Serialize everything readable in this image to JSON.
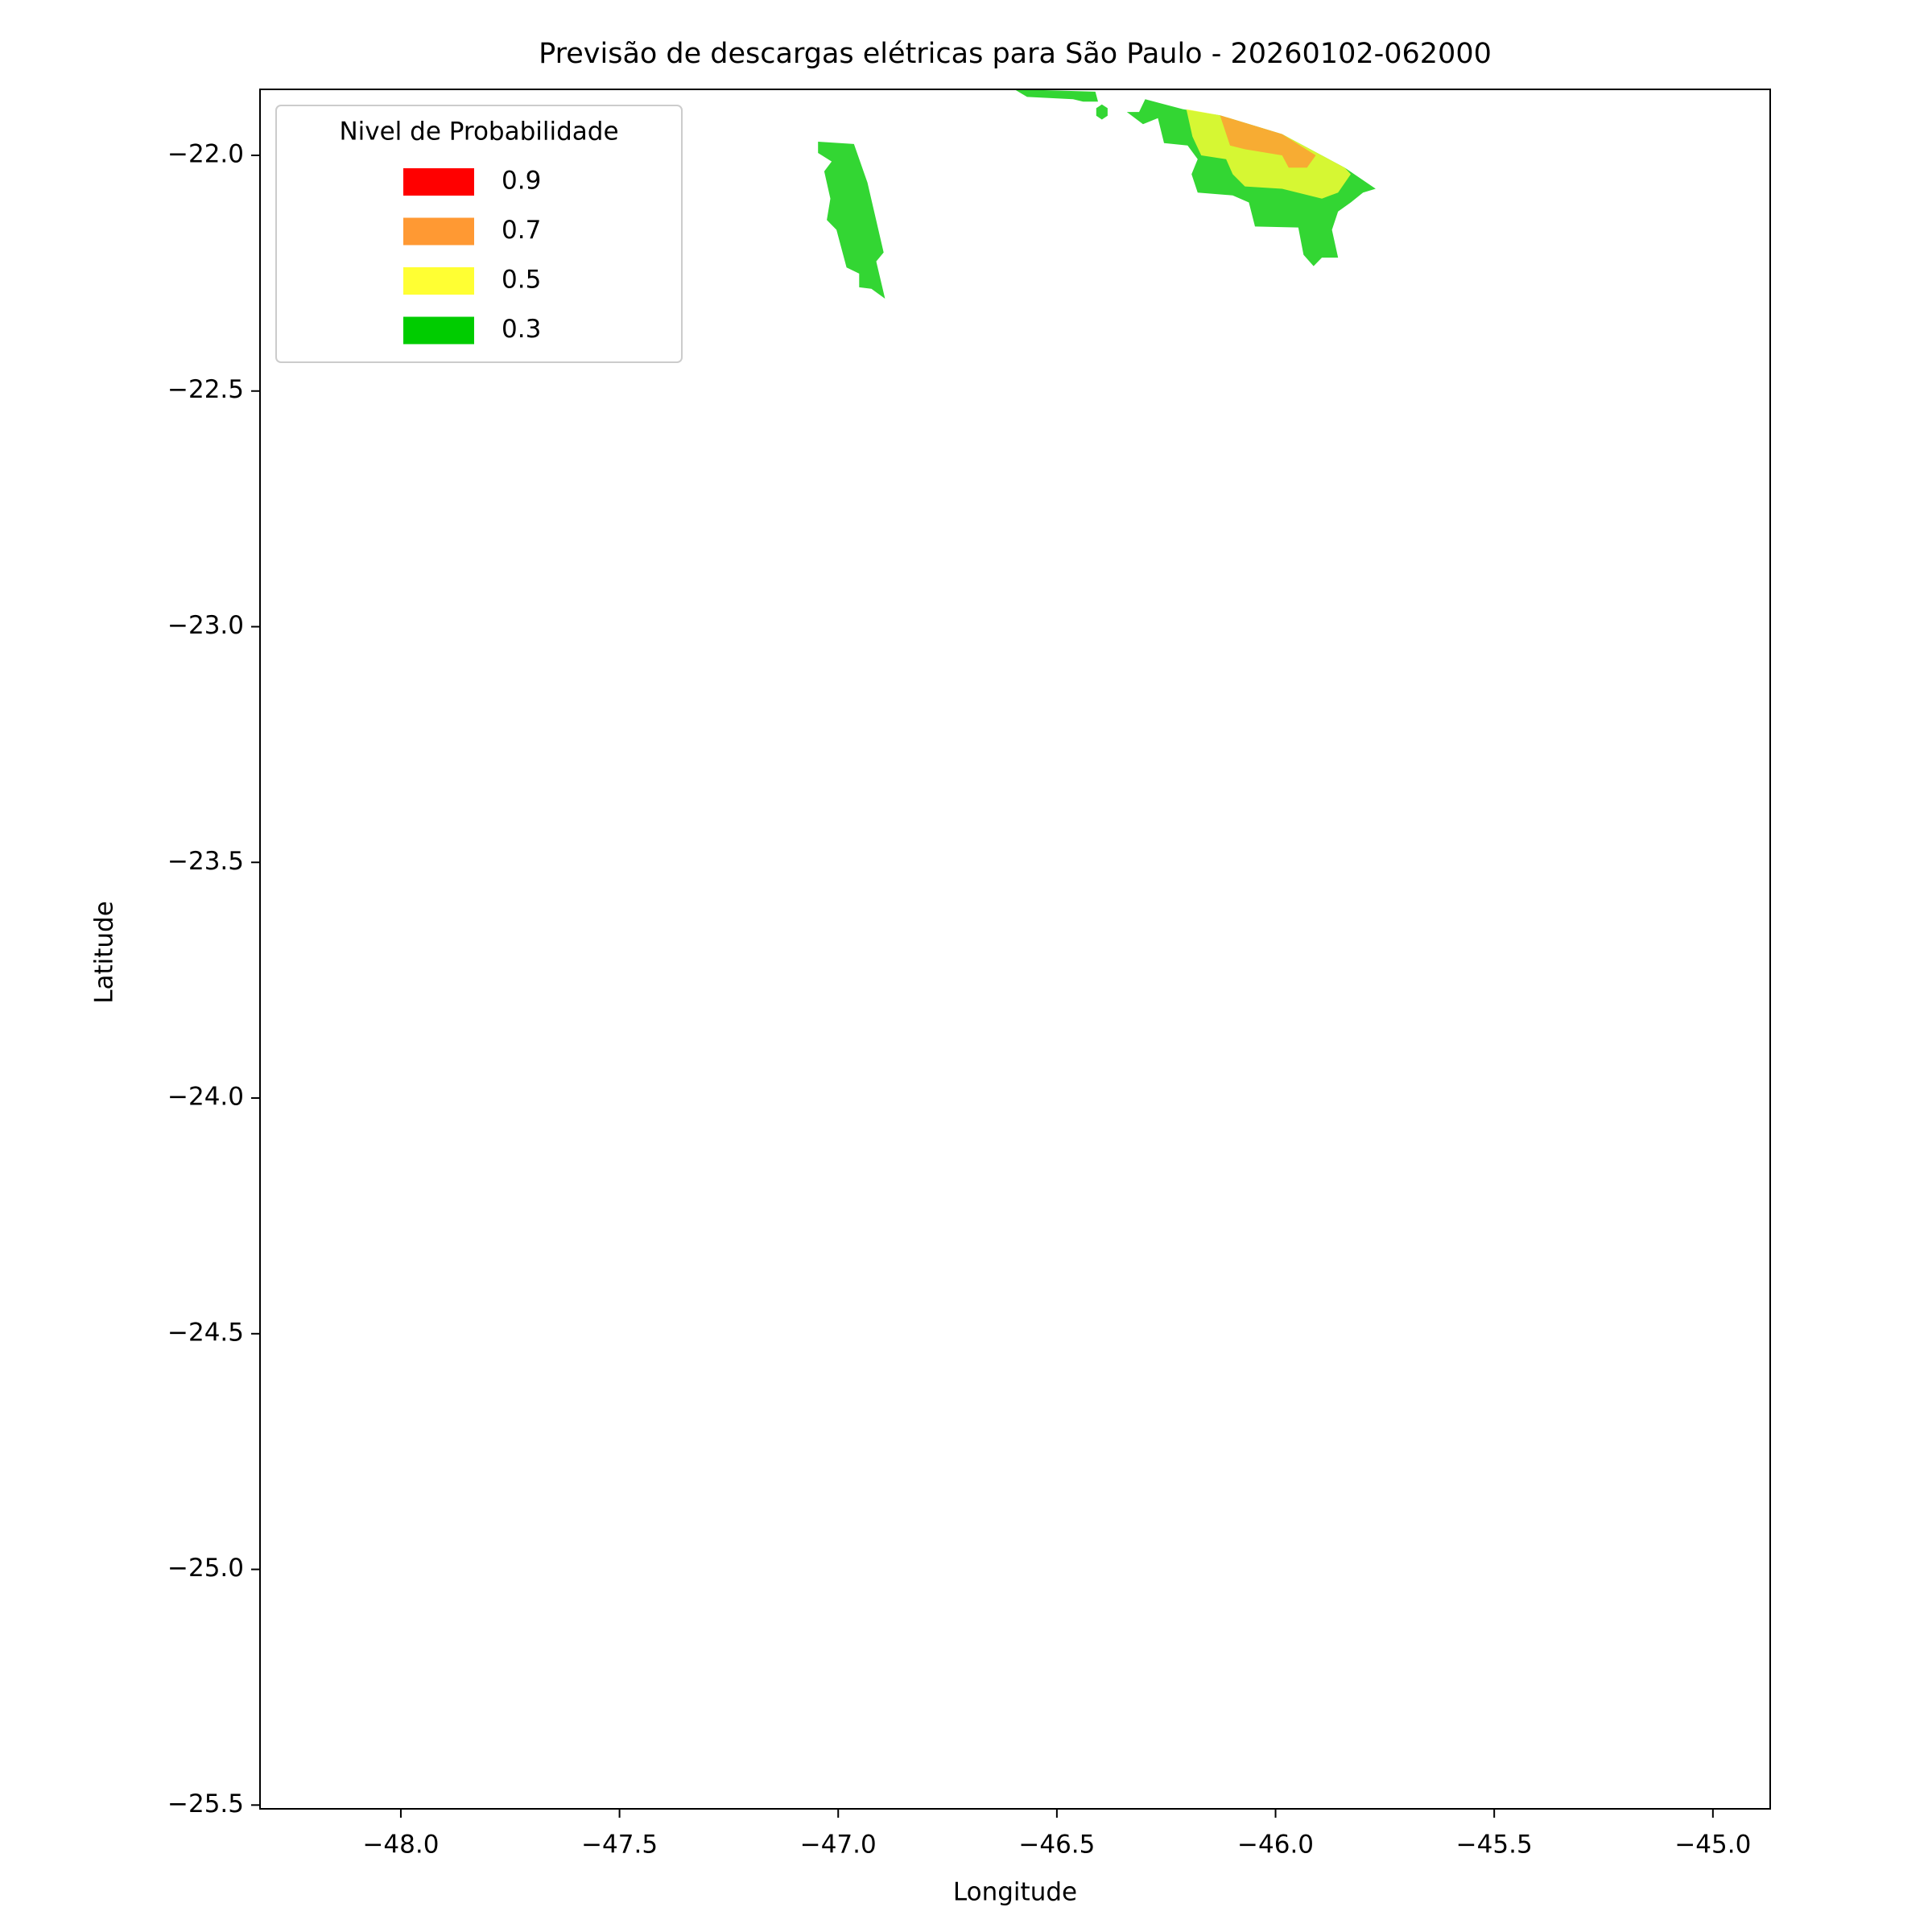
{
  "chart_data": {
    "type": "contour-map",
    "title": "Previsão de descargas elétricas para São Paulo - 20260102-062000",
    "x_label": "Longitude",
    "y_label": "Latitude",
    "xlim": [
      -48.322,
      -44.869
    ],
    "ylim": [
      -25.508,
      -21.86
    ],
    "xticks": [
      {
        "value": -48,
        "label": "−48.0"
      },
      {
        "value": -47.5,
        "label": "−47.5"
      },
      {
        "value": -47,
        "label": "−47.0"
      },
      {
        "value": -46.5,
        "label": "−46.5"
      },
      {
        "value": -46,
        "label": "−46.0"
      },
      {
        "value": -45.5,
        "label": "−45.5"
      },
      {
        "value": -45,
        "label": "−45.0"
      }
    ],
    "yticks": [
      {
        "value": -22,
        "label": "−22.0"
      },
      {
        "value": -22.5,
        "label": "−22.5"
      },
      {
        "value": -23,
        "label": "−23.0"
      },
      {
        "value": -23.5,
        "label": "−23.5"
      },
      {
        "value": -24,
        "label": "−24.0"
      },
      {
        "value": -24.5,
        "label": "−24.5"
      },
      {
        "value": -25,
        "label": "−25.0"
      },
      {
        "value": -25.5,
        "label": "−25.5"
      }
    ],
    "legend_title": "Nivel de Probabilidade",
    "legend": "upper left",
    "levels": [
      {
        "name": 0.9,
        "color": "#ff0000"
      },
      {
        "name": 0.7,
        "color": "#ff9933"
      },
      {
        "name": 0.5,
        "color": "#ffff33"
      },
      {
        "name": 0.3,
        "color": "#00cc00"
      }
    ],
    "regions": [
      {
        "level": 0.3,
        "lon": [
          -47.046,
          -46.964,
          -46.933,
          -46.896,
          -46.913,
          -46.893,
          -46.924,
          -46.952,
          -46.952,
          -46.981,
          -47.004,
          -47.026,
          -47.018,
          -47.032,
          -47.015,
          -47.046
        ],
        "lat": [
          -21.971,
          -21.976,
          -22.058,
          -22.206,
          -22.225,
          -22.304,
          -22.283,
          -22.28,
          -22.251,
          -22.238,
          -22.158,
          -22.137,
          -22.092,
          -22.034,
          -22.013,
          -21.995
        ]
      },
      {
        "level": 0.3,
        "lon": [
          -46.597,
          -46.412,
          -46.406,
          -46.44,
          -46.463,
          -46.568
        ],
        "lat": [
          -21.86,
          -21.865,
          -21.886,
          -21.886,
          -21.881,
          -21.876
        ]
      },
      {
        "level": 0.3,
        "lon": [
          -46.397,
          -46.384,
          -46.384,
          -46.397,
          -46.41,
          -46.41
        ],
        "lat": [
          -21.892,
          -21.9,
          -21.916,
          -21.924,
          -21.916,
          -21.9
        ]
      },
      {
        "level": 0.3,
        "lon": [
          -46.298,
          -46.212,
          -46.127,
          -45.985,
          -45.842,
          -45.771,
          -45.8,
          -45.828,
          -45.857,
          -45.871,
          -45.857,
          -45.894,
          -45.913,
          -45.936,
          -45.948,
          -46.047,
          -46.061,
          -46.098,
          -46.178,
          -46.192,
          -46.178,
          -46.201,
          -46.255,
          -46.269,
          -46.303,
          -46.34,
          -46.312
        ],
        "lat": [
          -21.881,
          -21.902,
          -21.915,
          -21.955,
          -22.026,
          -22.071,
          -22.079,
          -22.1,
          -22.119,
          -22.158,
          -22.217,
          -22.217,
          -22.235,
          -22.211,
          -22.153,
          -22.151,
          -22.1,
          -22.085,
          -22.079,
          -22.04,
          -22.008,
          -21.979,
          -21.974,
          -21.921,
          -21.934,
          -21.908,
          -21.908
        ]
      },
      {
        "level": 0.5,
        "lon": [
          -46.204,
          -46.127,
          -45.985,
          -45.842,
          -45.828,
          -45.857,
          -45.894,
          -45.985,
          -46.07,
          -46.098,
          -46.113,
          -46.17,
          -46.19
        ],
        "lat": [
          -21.902,
          -21.915,
          -21.955,
          -22.026,
          -22.04,
          -22.079,
          -22.092,
          -22.071,
          -22.066,
          -22.04,
          -22.008,
          -22.0,
          -21.96
        ]
      },
      {
        "level": 0.7,
        "lon": [
          -46.127,
          -45.985,
          -45.908,
          -45.928,
          -45.97,
          -45.985,
          -46.07,
          -46.104
        ],
        "lat": [
          -21.915,
          -21.955,
          -22.0,
          -22.026,
          -22.026,
          -22.0,
          -21.987,
          -21.979
        ]
      }
    ]
  }
}
